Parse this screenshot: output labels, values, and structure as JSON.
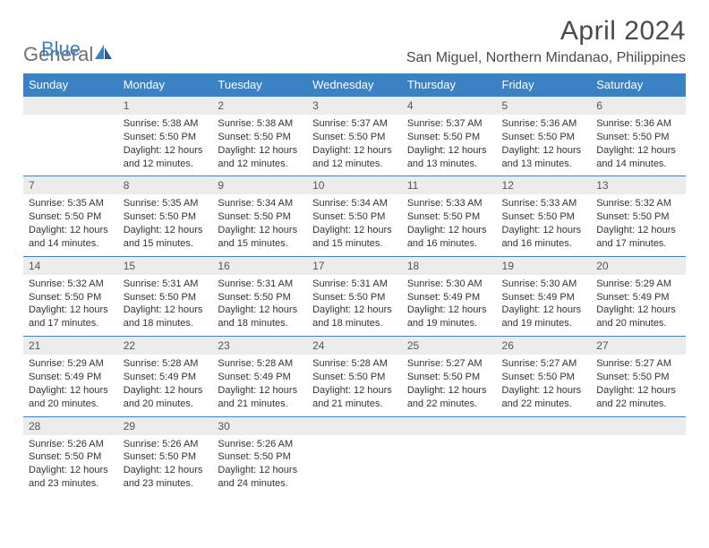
{
  "logo": {
    "text1": "General",
    "text2": "Blue"
  },
  "title": "April 2024",
  "location": "San Miguel, Northern Mindanao, Philippines",
  "colors": {
    "header_bg": "#3a82c4",
    "header_text": "#ffffff",
    "daynum_bg": "#ececec",
    "daynum_text": "#555555",
    "body_text": "#333333",
    "rule": "#3a82c4",
    "logo_gray": "#707070",
    "logo_blue": "#3a82c4",
    "page_bg": "#ffffff"
  },
  "typography": {
    "title_fontsize": 30,
    "location_fontsize": 16,
    "header_fontsize": 13,
    "daynum_fontsize": 12,
    "cell_fontsize": 11
  },
  "days": [
    "Sunday",
    "Monday",
    "Tuesday",
    "Wednesday",
    "Thursday",
    "Friday",
    "Saturday"
  ],
  "weeks": [
    [
      null,
      {
        "n": "1",
        "sr": "Sunrise: 5:38 AM",
        "ss": "Sunset: 5:50 PM",
        "dl": "Daylight: 12 hours and 12 minutes."
      },
      {
        "n": "2",
        "sr": "Sunrise: 5:38 AM",
        "ss": "Sunset: 5:50 PM",
        "dl": "Daylight: 12 hours and 12 minutes."
      },
      {
        "n": "3",
        "sr": "Sunrise: 5:37 AM",
        "ss": "Sunset: 5:50 PM",
        "dl": "Daylight: 12 hours and 12 minutes."
      },
      {
        "n": "4",
        "sr": "Sunrise: 5:37 AM",
        "ss": "Sunset: 5:50 PM",
        "dl": "Daylight: 12 hours and 13 minutes."
      },
      {
        "n": "5",
        "sr": "Sunrise: 5:36 AM",
        "ss": "Sunset: 5:50 PM",
        "dl": "Daylight: 12 hours and 13 minutes."
      },
      {
        "n": "6",
        "sr": "Sunrise: 5:36 AM",
        "ss": "Sunset: 5:50 PM",
        "dl": "Daylight: 12 hours and 14 minutes."
      }
    ],
    [
      {
        "n": "7",
        "sr": "Sunrise: 5:35 AM",
        "ss": "Sunset: 5:50 PM",
        "dl": "Daylight: 12 hours and 14 minutes."
      },
      {
        "n": "8",
        "sr": "Sunrise: 5:35 AM",
        "ss": "Sunset: 5:50 PM",
        "dl": "Daylight: 12 hours and 15 minutes."
      },
      {
        "n": "9",
        "sr": "Sunrise: 5:34 AM",
        "ss": "Sunset: 5:50 PM",
        "dl": "Daylight: 12 hours and 15 minutes."
      },
      {
        "n": "10",
        "sr": "Sunrise: 5:34 AM",
        "ss": "Sunset: 5:50 PM",
        "dl": "Daylight: 12 hours and 15 minutes."
      },
      {
        "n": "11",
        "sr": "Sunrise: 5:33 AM",
        "ss": "Sunset: 5:50 PM",
        "dl": "Daylight: 12 hours and 16 minutes."
      },
      {
        "n": "12",
        "sr": "Sunrise: 5:33 AM",
        "ss": "Sunset: 5:50 PM",
        "dl": "Daylight: 12 hours and 16 minutes."
      },
      {
        "n": "13",
        "sr": "Sunrise: 5:32 AM",
        "ss": "Sunset: 5:50 PM",
        "dl": "Daylight: 12 hours and 17 minutes."
      }
    ],
    [
      {
        "n": "14",
        "sr": "Sunrise: 5:32 AM",
        "ss": "Sunset: 5:50 PM",
        "dl": "Daylight: 12 hours and 17 minutes."
      },
      {
        "n": "15",
        "sr": "Sunrise: 5:31 AM",
        "ss": "Sunset: 5:50 PM",
        "dl": "Daylight: 12 hours and 18 minutes."
      },
      {
        "n": "16",
        "sr": "Sunrise: 5:31 AM",
        "ss": "Sunset: 5:50 PM",
        "dl": "Daylight: 12 hours and 18 minutes."
      },
      {
        "n": "17",
        "sr": "Sunrise: 5:31 AM",
        "ss": "Sunset: 5:50 PM",
        "dl": "Daylight: 12 hours and 18 minutes."
      },
      {
        "n": "18",
        "sr": "Sunrise: 5:30 AM",
        "ss": "Sunset: 5:49 PM",
        "dl": "Daylight: 12 hours and 19 minutes."
      },
      {
        "n": "19",
        "sr": "Sunrise: 5:30 AM",
        "ss": "Sunset: 5:49 PM",
        "dl": "Daylight: 12 hours and 19 minutes."
      },
      {
        "n": "20",
        "sr": "Sunrise: 5:29 AM",
        "ss": "Sunset: 5:49 PM",
        "dl": "Daylight: 12 hours and 20 minutes."
      }
    ],
    [
      {
        "n": "21",
        "sr": "Sunrise: 5:29 AM",
        "ss": "Sunset: 5:49 PM",
        "dl": "Daylight: 12 hours and 20 minutes."
      },
      {
        "n": "22",
        "sr": "Sunrise: 5:28 AM",
        "ss": "Sunset: 5:49 PM",
        "dl": "Daylight: 12 hours and 20 minutes."
      },
      {
        "n": "23",
        "sr": "Sunrise: 5:28 AM",
        "ss": "Sunset: 5:49 PM",
        "dl": "Daylight: 12 hours and 21 minutes."
      },
      {
        "n": "24",
        "sr": "Sunrise: 5:28 AM",
        "ss": "Sunset: 5:50 PM",
        "dl": "Daylight: 12 hours and 21 minutes."
      },
      {
        "n": "25",
        "sr": "Sunrise: 5:27 AM",
        "ss": "Sunset: 5:50 PM",
        "dl": "Daylight: 12 hours and 22 minutes."
      },
      {
        "n": "26",
        "sr": "Sunrise: 5:27 AM",
        "ss": "Sunset: 5:50 PM",
        "dl": "Daylight: 12 hours and 22 minutes."
      },
      {
        "n": "27",
        "sr": "Sunrise: 5:27 AM",
        "ss": "Sunset: 5:50 PM",
        "dl": "Daylight: 12 hours and 22 minutes."
      }
    ],
    [
      {
        "n": "28",
        "sr": "Sunrise: 5:26 AM",
        "ss": "Sunset: 5:50 PM",
        "dl": "Daylight: 12 hours and 23 minutes."
      },
      {
        "n": "29",
        "sr": "Sunrise: 5:26 AM",
        "ss": "Sunset: 5:50 PM",
        "dl": "Daylight: 12 hours and 23 minutes."
      },
      {
        "n": "30",
        "sr": "Sunrise: 5:26 AM",
        "ss": "Sunset: 5:50 PM",
        "dl": "Daylight: 12 hours and 24 minutes."
      },
      null,
      null,
      null,
      null
    ]
  ]
}
